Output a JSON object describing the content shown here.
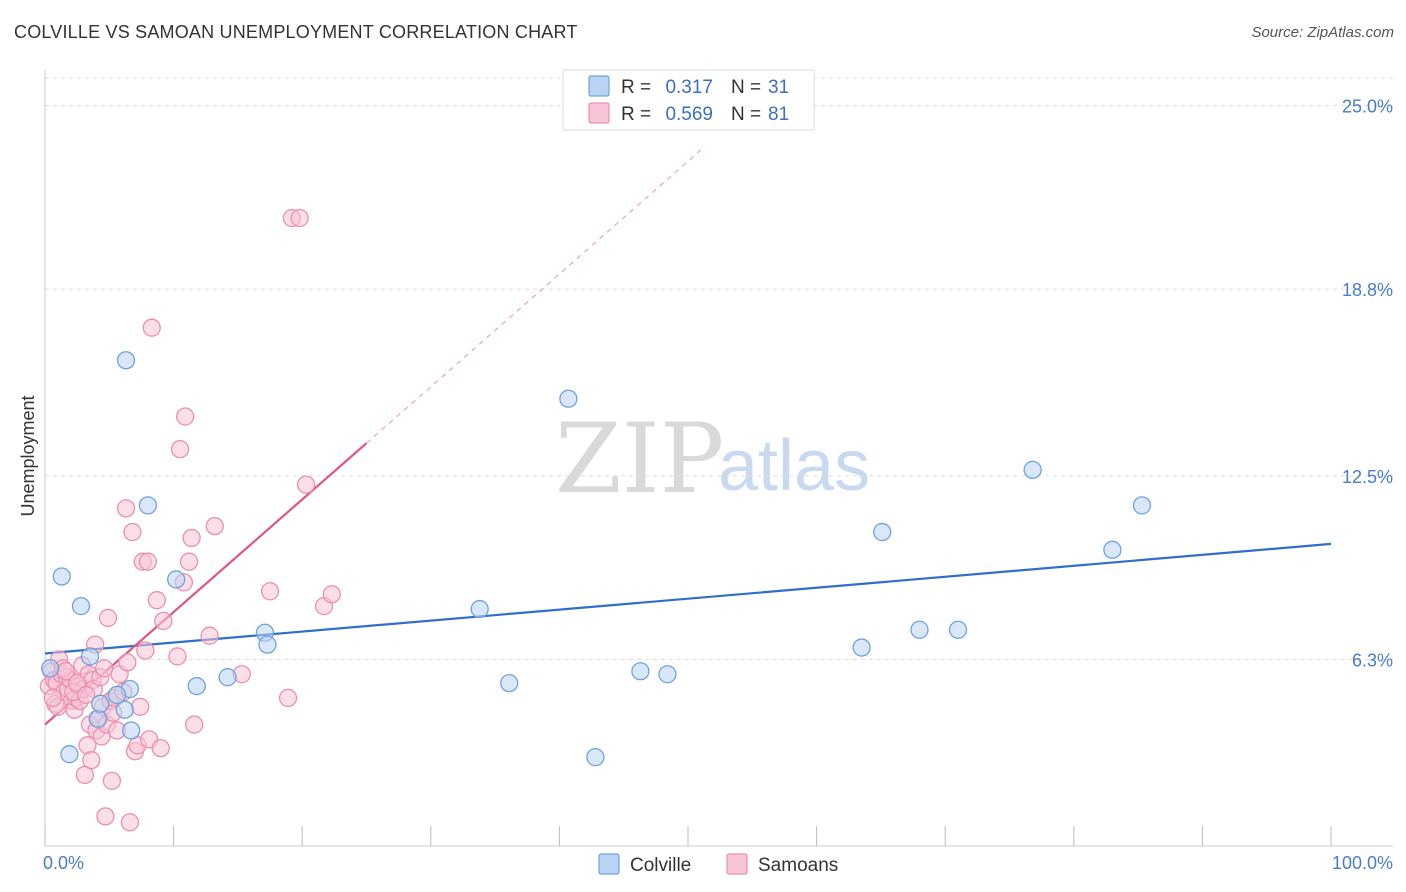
{
  "header": {
    "title": "COLVILLE VS SAMOAN UNEMPLOYMENT CORRELATION CHART",
    "source": "Source: ZipAtlas.com"
  },
  "watermark": {
    "zip": "ZIP",
    "atlas": "atlas"
  },
  "chart_data": {
    "type": "scatter",
    "title": "COLVILLE VS SAMOAN UNEMPLOYMENT CORRELATION CHART",
    "xlabel": "",
    "ylabel": "Unemployment",
    "xlim": [
      0,
      100
    ],
    "ylim": [
      0,
      26.2
    ],
    "x_tick_labels": [
      {
        "value": 0,
        "label": "0.0%"
      },
      {
        "value": 100,
        "label": "100.0%"
      }
    ],
    "y_tick_labels": [
      {
        "value": 6.3,
        "label": "6.3%"
      },
      {
        "value": 12.5,
        "label": "12.5%"
      },
      {
        "value": 18.8,
        "label": "18.8%"
      },
      {
        "value": 25.0,
        "label": "25.0%"
      }
    ],
    "grid": true,
    "legend_position": "top-center",
    "bottom_legend_position": "bottom-center",
    "series": [
      {
        "name": "Colville",
        "color": "#6fa3e0",
        "fill": "#b9d3f3",
        "line_color": "#2f6fcb",
        "stats": {
          "r_label": "R =",
          "r": "0.317",
          "n_label": "N =",
          "n": "31"
        },
        "trend": {
          "x": [
            0,
            100
          ],
          "y": [
            6.5,
            10.2
          ]
        },
        "points": [
          {
            "x": 0.4,
            "y": 6.0
          },
          {
            "x": 1.3,
            "y": 9.1
          },
          {
            "x": 1.9,
            "y": 3.1
          },
          {
            "x": 2.8,
            "y": 8.1
          },
          {
            "x": 3.5,
            "y": 6.4
          },
          {
            "x": 4.1,
            "y": 4.3
          },
          {
            "x": 4.3,
            "y": 4.8
          },
          {
            "x": 6.2,
            "y": 4.6
          },
          {
            "x": 6.6,
            "y": 5.3
          },
          {
            "x": 6.7,
            "y": 3.9
          },
          {
            "x": 5.6,
            "y": 5.1
          },
          {
            "x": 6.3,
            "y": 16.4
          },
          {
            "x": 8.0,
            "y": 11.5
          },
          {
            "x": 10.2,
            "y": 9.0
          },
          {
            "x": 11.8,
            "y": 5.4
          },
          {
            "x": 14.2,
            "y": 5.7
          },
          {
            "x": 17.1,
            "y": 7.2
          },
          {
            "x": 17.3,
            "y": 6.8
          },
          {
            "x": 33.8,
            "y": 8.0
          },
          {
            "x": 36.1,
            "y": 5.5
          },
          {
            "x": 40.7,
            "y": 15.1
          },
          {
            "x": 42.8,
            "y": 3.0
          },
          {
            "x": 46.3,
            "y": 5.9
          },
          {
            "x": 48.4,
            "y": 5.8
          },
          {
            "x": 63.5,
            "y": 6.7
          },
          {
            "x": 65.1,
            "y": 10.6
          },
          {
            "x": 68.0,
            "y": 7.3
          },
          {
            "x": 71.0,
            "y": 7.3
          },
          {
            "x": 76.8,
            "y": 12.7
          },
          {
            "x": 83.0,
            "y": 10.0
          },
          {
            "x": 85.3,
            "y": 11.5
          }
        ]
      },
      {
        "name": "Samoans",
        "color": "#ec8fae",
        "fill": "#f7c5d6",
        "line_color": "#e0557f",
        "stats": {
          "r_label": "R =",
          "r": "0.569",
          "n_label": "N =",
          "n": "81"
        },
        "trend": {
          "x": [
            0,
            25
          ],
          "y": [
            4.1,
            13.6
          ]
        },
        "trend_extension": {
          "x": [
            25,
            51
          ],
          "y": [
            13.6,
            23.5
          ]
        },
        "points": [
          {
            "x": 0.3,
            "y": 5.4
          },
          {
            "x": 0.5,
            "y": 5.9
          },
          {
            "x": 0.7,
            "y": 5.6
          },
          {
            "x": 0.8,
            "y": 4.8
          },
          {
            "x": 0.9,
            "y": 5.5
          },
          {
            "x": 1.1,
            "y": 6.3
          },
          {
            "x": 1.3,
            "y": 5.8
          },
          {
            "x": 1.5,
            "y": 5.2
          },
          {
            "x": 1.7,
            "y": 5.7
          },
          {
            "x": 1.8,
            "y": 5.3
          },
          {
            "x": 2.0,
            "y": 5.6
          },
          {
            "x": 2.1,
            "y": 4.9
          },
          {
            "x": 2.3,
            "y": 4.6
          },
          {
            "x": 2.4,
            "y": 5.0
          },
          {
            "x": 2.6,
            "y": 5.4
          },
          {
            "x": 2.7,
            "y": 4.9
          },
          {
            "x": 2.9,
            "y": 6.1
          },
          {
            "x": 3.0,
            "y": 5.3
          },
          {
            "x": 3.1,
            "y": 2.4
          },
          {
            "x": 3.3,
            "y": 3.4
          },
          {
            "x": 3.4,
            "y": 5.8
          },
          {
            "x": 3.5,
            "y": 4.1
          },
          {
            "x": 3.6,
            "y": 2.9
          },
          {
            "x": 3.7,
            "y": 5.6
          },
          {
            "x": 3.8,
            "y": 5.3
          },
          {
            "x": 3.9,
            "y": 6.8
          },
          {
            "x": 4.0,
            "y": 3.9
          },
          {
            "x": 4.2,
            "y": 4.3
          },
          {
            "x": 4.3,
            "y": 5.7
          },
          {
            "x": 4.4,
            "y": 3.7
          },
          {
            "x": 4.5,
            "y": 4.7
          },
          {
            "x": 4.6,
            "y": 6.0
          },
          {
            "x": 4.7,
            "y": 1.0
          },
          {
            "x": 4.8,
            "y": 4.1
          },
          {
            "x": 4.9,
            "y": 7.7
          },
          {
            "x": 5.1,
            "y": 4.9
          },
          {
            "x": 5.2,
            "y": 2.2
          },
          {
            "x": 5.3,
            "y": 4.5
          },
          {
            "x": 5.4,
            "y": 5.0
          },
          {
            "x": 5.6,
            "y": 3.9
          },
          {
            "x": 5.8,
            "y": 5.8
          },
          {
            "x": 6.1,
            "y": 5.2
          },
          {
            "x": 6.3,
            "y": 11.4
          },
          {
            "x": 6.4,
            "y": 6.2
          },
          {
            "x": 6.6,
            "y": 0.8
          },
          {
            "x": 6.8,
            "y": 10.6
          },
          {
            "x": 7.0,
            "y": 3.2
          },
          {
            "x": 7.2,
            "y": 3.4
          },
          {
            "x": 7.4,
            "y": 4.7
          },
          {
            "x": 7.6,
            "y": 9.6
          },
          {
            "x": 7.8,
            "y": 6.6
          },
          {
            "x": 8.0,
            "y": 9.6
          },
          {
            "x": 8.1,
            "y": 3.6
          },
          {
            "x": 8.3,
            "y": 17.5
          },
          {
            "x": 8.7,
            "y": 8.3
          },
          {
            "x": 9.0,
            "y": 3.3
          },
          {
            "x": 9.2,
            "y": 7.6
          },
          {
            "x": 10.3,
            "y": 6.4
          },
          {
            "x": 10.5,
            "y": 13.4
          },
          {
            "x": 10.9,
            "y": 14.5
          },
          {
            "x": 10.8,
            "y": 8.9
          },
          {
            "x": 11.2,
            "y": 9.6
          },
          {
            "x": 11.4,
            "y": 10.4
          },
          {
            "x": 11.6,
            "y": 4.1
          },
          {
            "x": 12.8,
            "y": 7.1
          },
          {
            "x": 13.2,
            "y": 10.8
          },
          {
            "x": 15.3,
            "y": 5.8
          },
          {
            "x": 17.5,
            "y": 8.6
          },
          {
            "x": 18.9,
            "y": 5.0
          },
          {
            "x": 19.2,
            "y": 21.2
          },
          {
            "x": 19.8,
            "y": 21.2
          },
          {
            "x": 20.3,
            "y": 12.2
          },
          {
            "x": 21.7,
            "y": 8.1
          },
          {
            "x": 22.3,
            "y": 8.5
          },
          {
            "x": 1.0,
            "y": 4.7
          },
          {
            "x": 1.4,
            "y": 6.0
          },
          {
            "x": 2.2,
            "y": 5.2
          },
          {
            "x": 2.5,
            "y": 5.5
          },
          {
            "x": 3.2,
            "y": 5.1
          },
          {
            "x": 0.6,
            "y": 5.0
          },
          {
            "x": 1.6,
            "y": 5.9
          }
        ]
      }
    ]
  }
}
